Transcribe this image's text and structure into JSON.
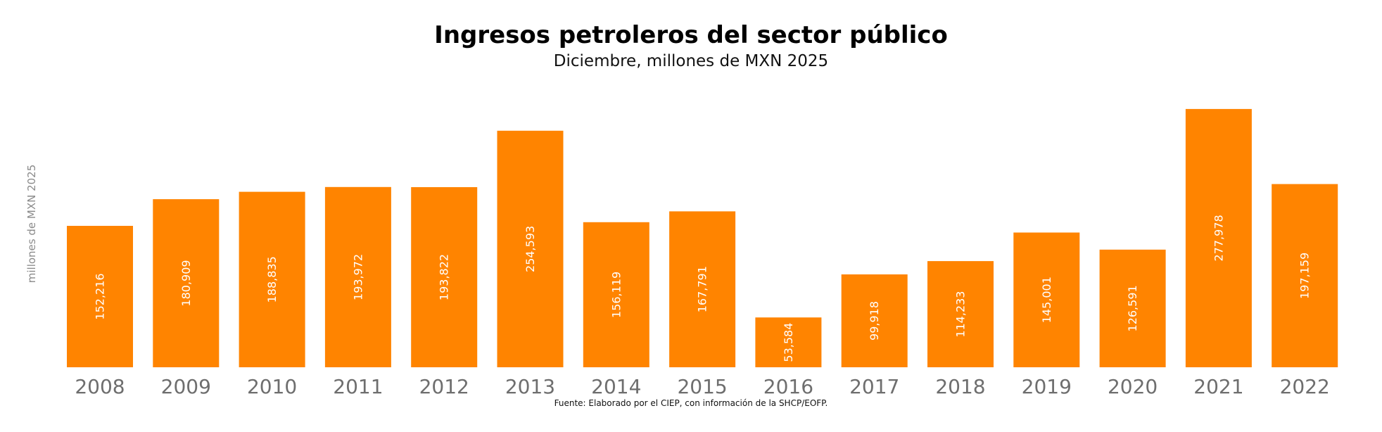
{
  "chart_data": {
    "type": "bar",
    "title": "Ingresos petroleros del sector público",
    "subtitle": "Diciembre, millones de MXN 2025",
    "ylabel": "millones de MXN 2025",
    "xlabel": "",
    "source": "Fuente: Elaborado por el CIEP, con información de la SHCP/EOFP.",
    "bar_color": "#ff8400",
    "ylim": [
      0,
      290000
    ],
    "grid": false,
    "categories": [
      "2008",
      "2009",
      "2010",
      "2011",
      "2012",
      "2013",
      "2014",
      "2015",
      "2016",
      "2017",
      "2018",
      "2019",
      "2020",
      "2021",
      "2022"
    ],
    "values": [
      152216,
      180909,
      188835,
      193972,
      193822,
      254593,
      156119,
      167791,
      53584,
      99918,
      114233,
      145001,
      126591,
      277978,
      197159
    ],
    "value_labels": [
      "152,216",
      "180,909",
      "188,835",
      "193,972",
      "193,822",
      "254,593",
      "156,119",
      "167,791",
      "53,584",
      "99,918",
      "114,233",
      "145,001",
      "126,591",
      "277,978",
      "197,159"
    ]
  }
}
